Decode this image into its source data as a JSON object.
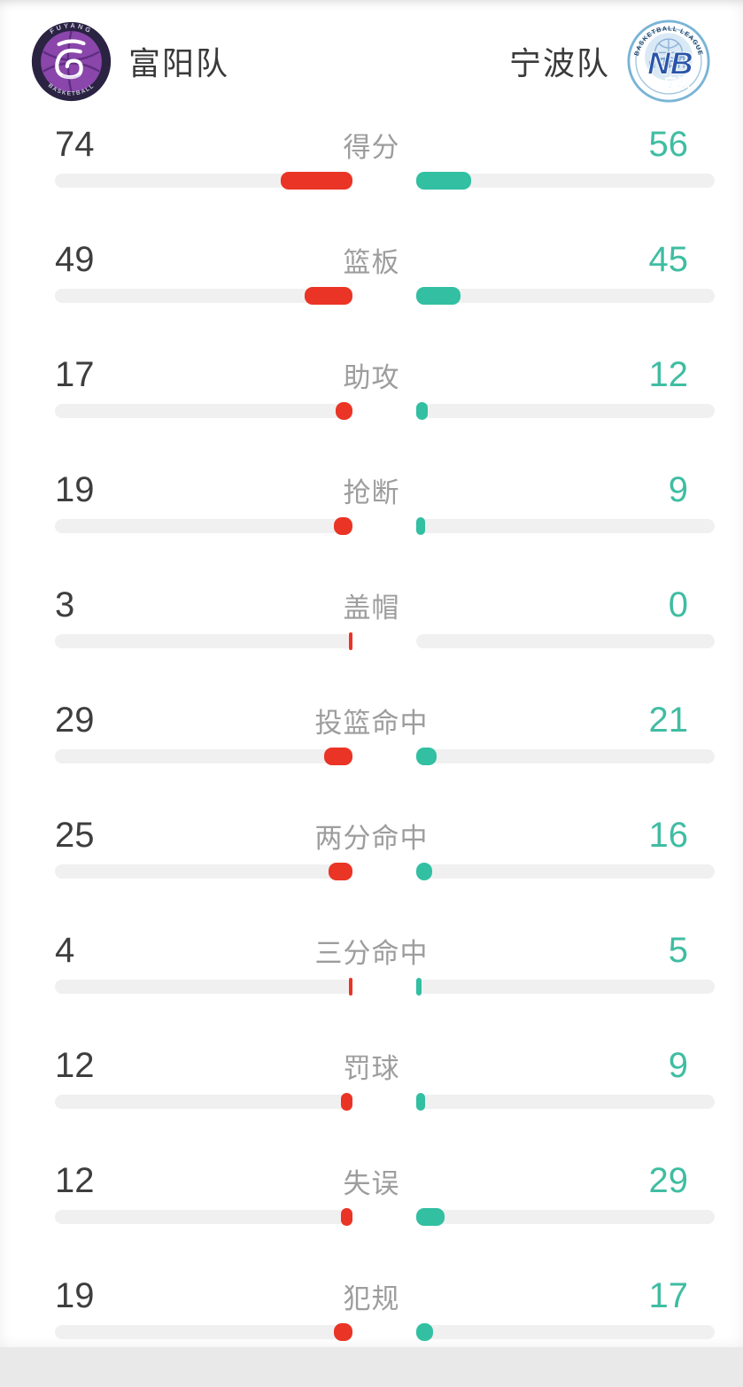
{
  "header": {
    "home": {
      "name": "富阳队",
      "logo": {
        "arc_top": "FUYANG",
        "arc_bottom": "BASKETBALL",
        "ring_color": "#2a2342",
        "inner_color": "#8a46ab"
      }
    },
    "away": {
      "name": "宁波队",
      "logo": {
        "arc_top": "BASKETBALL LEAGUE",
        "monogram": "NB",
        "subtitle": "宁波",
        "ring_color": "#79b4d6",
        "monogram_color": "#2b55a8"
      }
    }
  },
  "colors": {
    "home_bar": "#ea3425",
    "away_bar": "#32bfa2",
    "home_value_text": "#3e3e3e",
    "away_value_text": "#3fbda2",
    "label_text": "#9d9d9d",
    "track": "#f0f0f0"
  },
  "chart_data": {
    "type": "bar",
    "title": "富阳队 vs 宁波队",
    "layout": "paired horizontal bars growing outward from center, left series red, right series teal, values at outer edges, category label centered",
    "legend_position": "header (team names with logos)",
    "categories": [
      "得分",
      "篮板",
      "助攻",
      "抢断",
      "盖帽",
      "投篮命中",
      "两分命中",
      "三分命中",
      "罚球",
      "失误",
      "犯规"
    ],
    "series": [
      {
        "name": "富阳队",
        "color": "#ea3425",
        "values": [
          74,
          49,
          17,
          19,
          3,
          29,
          25,
          4,
          12,
          12,
          19
        ]
      },
      {
        "name": "宁波队",
        "color": "#32bfa2",
        "values": [
          56,
          45,
          12,
          9,
          0,
          21,
          16,
          5,
          9,
          29,
          17
        ]
      }
    ]
  }
}
